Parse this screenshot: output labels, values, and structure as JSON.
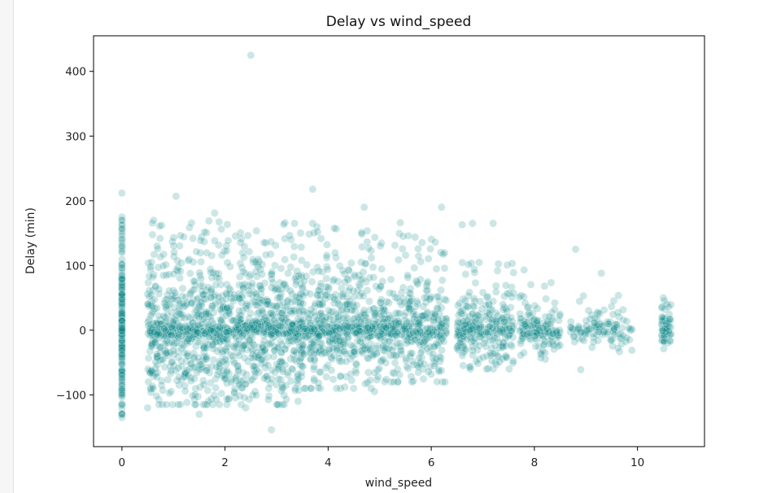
{
  "chart_data": {
    "type": "scatter",
    "title": "Delay vs wind_speed",
    "xlabel": "wind_speed",
    "ylabel": "Delay (min)",
    "xlim": [
      -0.55,
      11.3
    ],
    "ylim": [
      -180,
      455
    ],
    "xticks": [
      0,
      2,
      4,
      6,
      8,
      10
    ],
    "yticks": [
      -100,
      0,
      100,
      200,
      300,
      400
    ],
    "ytick_labels": [
      "−100",
      "0",
      "100",
      "200",
      "300",
      "400"
    ],
    "grid": false,
    "point_color": "#008080",
    "point_alpha": 0.2,
    "highlighted_points": [
      {
        "x": 0.0,
        "y": 212
      },
      {
        "x": 0.0,
        "y": 175
      },
      {
        "x": 0.0,
        "y": -135
      },
      {
        "x": 1.05,
        "y": 207
      },
      {
        "x": 1.8,
        "y": 181
      },
      {
        "x": 2.5,
        "y": 425
      },
      {
        "x": 2.9,
        "y": -154
      },
      {
        "x": 3.7,
        "y": 218
      },
      {
        "x": 3.7,
        "y": 165
      },
      {
        "x": 4.7,
        "y": 190
      },
      {
        "x": 5.4,
        "y": 166
      },
      {
        "x": 6.2,
        "y": 190
      },
      {
        "x": 6.6,
        "y": 163
      },
      {
        "x": 6.8,
        "y": 165
      },
      {
        "x": 7.2,
        "y": 165
      },
      {
        "x": 7.8,
        "y": 93
      },
      {
        "x": 8.8,
        "y": 125
      },
      {
        "x": 8.9,
        "y": -61
      },
      {
        "x": 9.3,
        "y": 88
      },
      {
        "x": 10.5,
        "y": 50
      },
      {
        "x": 2.4,
        "y": -120
      },
      {
        "x": 1.5,
        "y": -130
      },
      {
        "x": 0.5,
        "y": -120
      },
      {
        "x": 4.9,
        "y": -95
      }
    ],
    "bulk_bands": [
      {
        "x_start": 0.0,
        "x_end": 0.0,
        "lo": -130,
        "hi": 170,
        "core": 70,
        "n": 180
      },
      {
        "x_start": 0.5,
        "x_end": 2.0,
        "lo": -115,
        "hi": 170,
        "core": 55,
        "n": 520
      },
      {
        "x_start": 2.0,
        "x_end": 3.5,
        "lo": -115,
        "hi": 175,
        "core": 55,
        "n": 520
      },
      {
        "x_start": 3.5,
        "x_end": 5.0,
        "lo": -90,
        "hi": 165,
        "core": 45,
        "n": 420
      },
      {
        "x_start": 5.0,
        "x_end": 6.3,
        "lo": -80,
        "hi": 150,
        "core": 38,
        "n": 320
      },
      {
        "x_start": 6.5,
        "x_end": 7.6,
        "lo": -60,
        "hi": 105,
        "core": 30,
        "n": 230
      },
      {
        "x_start": 7.7,
        "x_end": 8.5,
        "lo": -45,
        "hi": 75,
        "core": 20,
        "n": 120
      },
      {
        "x_start": 8.7,
        "x_end": 9.9,
        "lo": -35,
        "hi": 60,
        "core": 15,
        "n": 90
      },
      {
        "x_start": 10.45,
        "x_end": 10.65,
        "lo": -20,
        "hi": 50,
        "core": 15,
        "n": 50
      }
    ]
  }
}
